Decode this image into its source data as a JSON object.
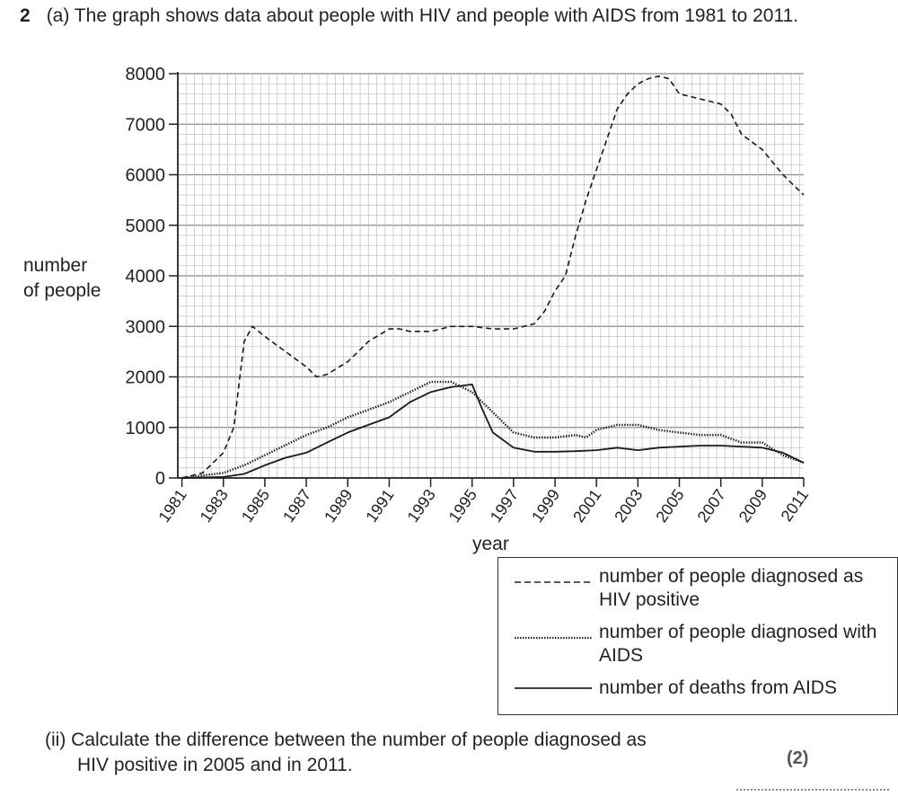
{
  "question": {
    "number": "2",
    "part_a": "(a)  The graph shows data about people with HIV and people with AIDS from 1981 to 2011.",
    "subquestion_ii_line1": "(ii)  Calculate the difference between the number of people diagnosed as",
    "subquestion_ii_line2": "HIV positive in 2005 and in 2011.",
    "marks": "(2)"
  },
  "chart_data": {
    "type": "line",
    "ylabel_line1": "number",
    "ylabel_line2": "of people",
    "xlabel": "year",
    "xlim": [
      1980.8,
      2011
    ],
    "ylim": [
      0,
      8000
    ],
    "y_ticks": [
      0,
      1000,
      2000,
      3000,
      4000,
      5000,
      6000,
      7000,
      8000
    ],
    "x_ticks": [
      1981,
      1983,
      1985,
      1987,
      1989,
      1991,
      1993,
      1995,
      1997,
      1999,
      2001,
      2003,
      2005,
      2007,
      2009,
      2011
    ],
    "grid": true,
    "legend_position": "bottom-right",
    "series": [
      {
        "name": "number of people diagnosed as HIV positive",
        "style": "dashed",
        "points": [
          [
            1981,
            0
          ],
          [
            1982,
            100
          ],
          [
            1983,
            500
          ],
          [
            1983.5,
            1000
          ],
          [
            1984,
            2700
          ],
          [
            1984.4,
            3000
          ],
          [
            1985,
            2800
          ],
          [
            1986,
            2500
          ],
          [
            1987,
            2200
          ],
          [
            1987.5,
            2000
          ],
          [
            1988,
            2050
          ],
          [
            1989,
            2300
          ],
          [
            1989.5,
            2500
          ],
          [
            1990,
            2700
          ],
          [
            1991,
            2950
          ],
          [
            1991.5,
            2950
          ],
          [
            1992,
            2900
          ],
          [
            1993,
            2900
          ],
          [
            1994,
            3000
          ],
          [
            1995,
            3000
          ],
          [
            1996,
            2950
          ],
          [
            1997,
            2950
          ],
          [
            1998,
            3050
          ],
          [
            1998.5,
            3300
          ],
          [
            1999,
            3700
          ],
          [
            1999.5,
            4000
          ],
          [
            2000,
            4800
          ],
          [
            2000.5,
            5500
          ],
          [
            2001,
            6100
          ],
          [
            2002,
            7300
          ],
          [
            2002.5,
            7600
          ],
          [
            2003,
            7800
          ],
          [
            2003.5,
            7900
          ],
          [
            2004,
            7950
          ],
          [
            2004.5,
            7900
          ],
          [
            2005,
            7600
          ],
          [
            2006,
            7500
          ],
          [
            2007,
            7400
          ],
          [
            2007.5,
            7200
          ],
          [
            2008,
            6800
          ],
          [
            2009,
            6500
          ],
          [
            2010,
            6000
          ],
          [
            2011,
            5600
          ]
        ]
      },
      {
        "name": "number of people diagnosed with AIDS",
        "style": "dotted",
        "points": [
          [
            1981,
            0
          ],
          [
            1982,
            50
          ],
          [
            1983,
            100
          ],
          [
            1984,
            250
          ],
          [
            1985,
            450
          ],
          [
            1986,
            650
          ],
          [
            1987,
            850
          ],
          [
            1988,
            1000
          ],
          [
            1989,
            1200
          ],
          [
            1990,
            1350
          ],
          [
            1991,
            1500
          ],
          [
            1992,
            1700
          ],
          [
            1993,
            1900
          ],
          [
            1994,
            1900
          ],
          [
            1995,
            1700
          ],
          [
            1996,
            1300
          ],
          [
            1997,
            900
          ],
          [
            1998,
            800
          ],
          [
            1999,
            800
          ],
          [
            2000,
            850
          ],
          [
            2000.5,
            800
          ],
          [
            2001,
            950
          ],
          [
            2002,
            1050
          ],
          [
            2003,
            1050
          ],
          [
            2004,
            950
          ],
          [
            2005,
            900
          ],
          [
            2006,
            850
          ],
          [
            2007,
            850
          ],
          [
            2008,
            700
          ],
          [
            2009,
            700
          ],
          [
            2010,
            450
          ],
          [
            2011,
            300
          ]
        ]
      },
      {
        "name": "number of deaths from AIDS",
        "style": "solid",
        "points": [
          [
            1981,
            0
          ],
          [
            1983,
            20
          ],
          [
            1984,
            80
          ],
          [
            1985,
            250
          ],
          [
            1986,
            400
          ],
          [
            1987,
            500
          ],
          [
            1988,
            700
          ],
          [
            1989,
            900
          ],
          [
            1990,
            1050
          ],
          [
            1991,
            1200
          ],
          [
            1992,
            1500
          ],
          [
            1993,
            1700
          ],
          [
            1994,
            1800
          ],
          [
            1995,
            1850
          ],
          [
            1995.5,
            1350
          ],
          [
            1996,
            900
          ],
          [
            1997,
            600
          ],
          [
            1998,
            520
          ],
          [
            1999,
            520
          ],
          [
            2000,
            530
          ],
          [
            2001,
            550
          ],
          [
            2002,
            600
          ],
          [
            2003,
            550
          ],
          [
            2004,
            600
          ],
          [
            2005,
            620
          ],
          [
            2006,
            640
          ],
          [
            2007,
            640
          ],
          [
            2008,
            620
          ],
          [
            2009,
            600
          ],
          [
            2010,
            500
          ],
          [
            2011,
            300
          ]
        ]
      }
    ]
  }
}
